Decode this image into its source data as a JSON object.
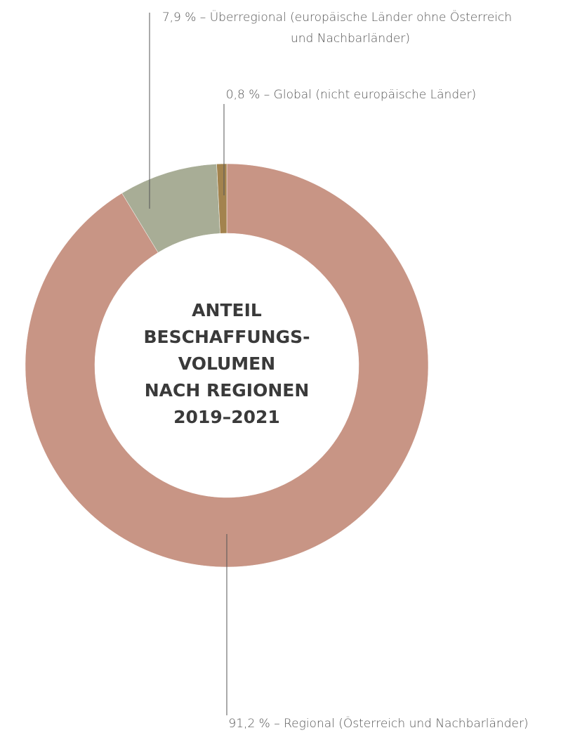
{
  "chart_data": {
    "type": "donut",
    "title": [
      "ANTEIL",
      "BESCHAFFUNGS-",
      "VOLUMEN",
      "NACH REGIONEN",
      "2019–2021"
    ],
    "categories": [
      [
        "91,2 % – Regional (Österreich und Nachbarländer)"
      ],
      [
        "7,9 % – Überregional (europäische Länder ohne Österreich",
        "und Nachbarländer)"
      ],
      [
        "0,8 % – Global (nicht europäische Länder)"
      ]
    ],
    "values": [
      91.2,
      7.9,
      0.8
    ],
    "colors": [
      "#c89585",
      "#a8ad96",
      "#a3834e"
    ]
  }
}
